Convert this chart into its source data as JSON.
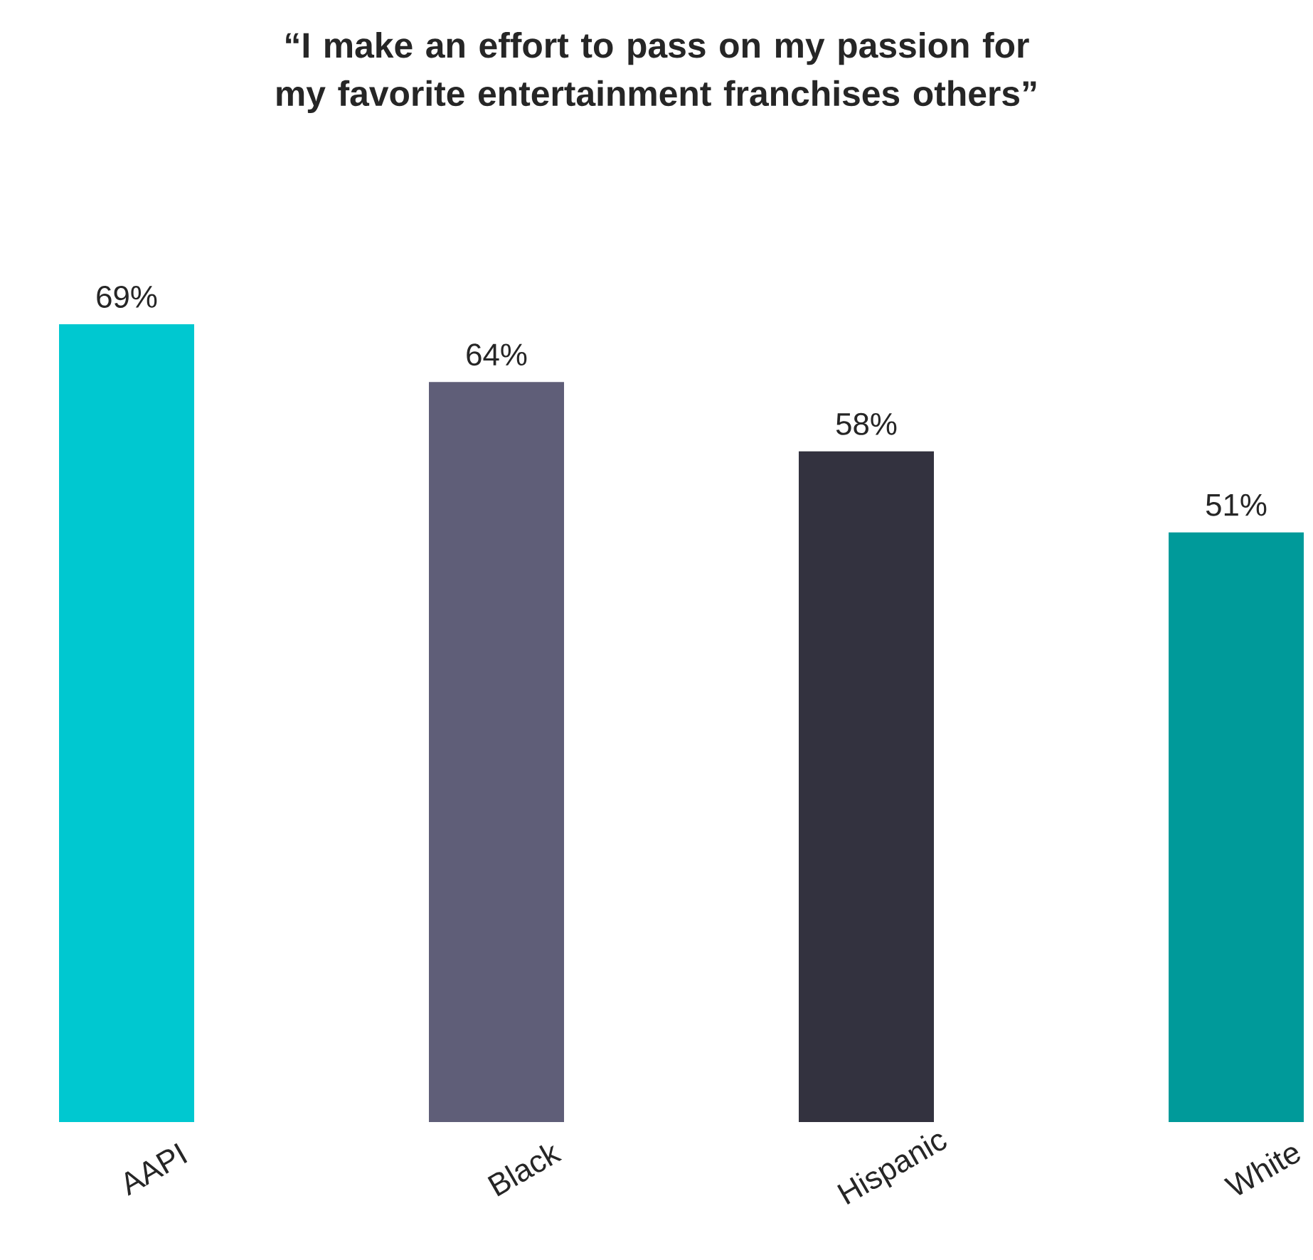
{
  "chart_data": {
    "type": "bar",
    "title": "“I make an effort to pass on my passion for my favorite entertainment franchises others”",
    "categories": [
      "AAPI",
      "Black",
      "Hispanic",
      "White"
    ],
    "values": [
      69,
      64,
      58,
      51
    ],
    "colors": [
      "#00c8d0",
      "#5f5e78",
      "#33323f",
      "#009a9a"
    ],
    "value_labels": [
      "69%",
      "64%",
      "58%",
      "51%"
    ]
  }
}
